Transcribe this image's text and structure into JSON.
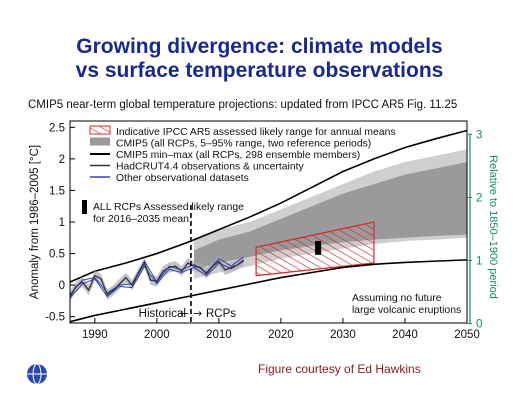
{
  "slide": {
    "title_line1": "Growing divergence: climate models",
    "title_line2": "vs surface temperature observations",
    "credit": "Figure courtesy of Ed Hawkins",
    "logo_icon": "globe-logo-icon"
  },
  "chart_data": {
    "type": "line",
    "title": "CMIP5 near-term global temperature projections: updated from IPCC AR5 Fig. 11.25",
    "ylabel": "Anomaly from 1986–2005 [°C]",
    "ylabel_right": "Relative to 1850–1900 period",
    "xlim": [
      1986,
      2050
    ],
    "ylim": [
      -0.6,
      2.6
    ],
    "right_axis_offset": 0.61,
    "x_ticks": [
      "1990",
      "2000",
      "2010",
      "2020",
      "2030",
      "2040",
      "2050"
    ],
    "y_ticks": [
      "-0.5",
      "0",
      "0.5",
      "1",
      "1.5",
      "2",
      "2.5"
    ],
    "y_ticks_right": [
      "0",
      "1",
      "2",
      "3"
    ],
    "legend": [
      {
        "label": "Indicative IPCC AR5 assessed likely range for annual means",
        "style": "hatch"
      },
      {
        "label": "CMIP5 (all RCPs, 5–95% range, two reference periods)",
        "style": "gray-box"
      },
      {
        "label": "CMIP5 min–max (all RCPs, 298 ensemble members)",
        "style": "black-line"
      },
      {
        "label": "HadCRUT4.4 observations & uncertainty",
        "style": "dark-line"
      },
      {
        "label": "Other observational datasets",
        "style": "blue-line"
      }
    ],
    "legend_placement": "top-left",
    "bar_annotation": "ALL RCPs Assessed likely range\nfor 2016–2035 mean",
    "annotation_bottom": "Assuming no future\nlarge volcanic eruptions",
    "historical_label": "Historical",
    "rcps_label": "RCPs",
    "split_year": 2005.5,
    "colors": {
      "hatch": "#d42a2a",
      "gray_outer": "#cfcfcf",
      "gray_inner": "#9a9a9a",
      "obs": "#333333",
      "obs_other": "#3344aa",
      "axis_right": "#1a8a6a"
    },
    "cmip_max": {
      "x": [
        1986,
        1990,
        1995,
        2000,
        2005,
        2010,
        2015,
        2020,
        2025,
        2030,
        2035,
        2040,
        2045,
        2050
      ],
      "y": [
        0.05,
        0.22,
        0.35,
        0.5,
        0.68,
        0.88,
        1.08,
        1.3,
        1.55,
        1.8,
        2.0,
        2.18,
        2.32,
        2.45
      ]
    },
    "cmip_min": {
      "x": [
        1986,
        1990,
        1995,
        2000,
        2005,
        2010,
        2015,
        2020,
        2025,
        2030,
        2035,
        2040,
        2045,
        2050
      ],
      "y": [
        -0.58,
        -0.48,
        -0.38,
        -0.28,
        -0.18,
        -0.08,
        0.02,
        0.12,
        0.2,
        0.28,
        0.33,
        0.36,
        0.38,
        0.4
      ]
    },
    "cmip_5_95": {
      "x": [
        2006,
        2010,
        2015,
        2020,
        2025,
        2030,
        2035,
        2040,
        2045,
        2050
      ],
      "upper": [
        0.72,
        0.88,
        1.0,
        1.2,
        1.4,
        1.6,
        1.8,
        1.95,
        2.05,
        2.15
      ],
      "lower": [
        0.1,
        0.2,
        0.3,
        0.42,
        0.5,
        0.58,
        0.65,
        0.7,
        0.72,
        0.75
      ]
    },
    "cmip_5_95_inner": {
      "x": [
        2006,
        2010,
        2015,
        2020,
        2025,
        2030,
        2035,
        2040,
        2045,
        2050
      ],
      "upper": [
        0.55,
        0.72,
        0.85,
        1.05,
        1.25,
        1.45,
        1.6,
        1.75,
        1.85,
        1.95
      ],
      "lower": [
        0.25,
        0.35,
        0.45,
        0.55,
        0.62,
        0.68,
        0.72,
        0.75,
        0.78,
        0.8
      ]
    },
    "assessed_range": {
      "x": [
        2016,
        2035
      ],
      "lower": [
        0.15,
        0.35
      ],
      "upper": [
        0.6,
        1.0
      ]
    },
    "assessed_bar": {
      "x": 2026,
      "low": 0.48,
      "high": 0.7
    },
    "hadcrut": {
      "x": [
        1986,
        1987,
        1988,
        1989,
        1990,
        1991,
        1992,
        1993,
        1994,
        1995,
        1996,
        1997,
        1998,
        1999,
        2000,
        2001,
        2002,
        2003,
        2004,
        2005,
        2006,
        2007,
        2008,
        2009,
        2010,
        2011,
        2012,
        2013,
        2014
      ],
      "y": [
        -0.18,
        -0.02,
        0.05,
        -0.08,
        0.15,
        0.1,
        -0.15,
        -0.08,
        0.02,
        0.12,
        0.0,
        0.18,
        0.35,
        0.08,
        0.06,
        0.22,
        0.28,
        0.3,
        0.22,
        0.35,
        0.3,
        0.28,
        0.18,
        0.3,
        0.38,
        0.24,
        0.28,
        0.32,
        0.4
      ]
    },
    "hadcrut_uncertainty": 0.08,
    "other_obs": [
      {
        "x": [
          1986,
          1988,
          1990,
          1992,
          1994,
          1996,
          1998,
          2000,
          2002,
          2004,
          2006,
          2008,
          2010,
          2012,
          2014
        ],
        "y": [
          -0.15,
          0.08,
          0.12,
          -0.12,
          0.0,
          0.02,
          0.38,
          0.05,
          0.3,
          0.24,
          0.33,
          0.2,
          0.42,
          0.3,
          0.45
        ]
      },
      {
        "x": [
          1986,
          1988,
          1990,
          1992,
          1994,
          1996,
          1998,
          2000,
          2002,
          2004,
          2006,
          2008,
          2010,
          2012,
          2014
        ],
        "y": [
          -0.2,
          0.02,
          0.1,
          -0.18,
          -0.02,
          -0.04,
          0.3,
          0.02,
          0.25,
          0.2,
          0.28,
          0.15,
          0.35,
          0.26,
          0.38
        ]
      }
    ]
  }
}
